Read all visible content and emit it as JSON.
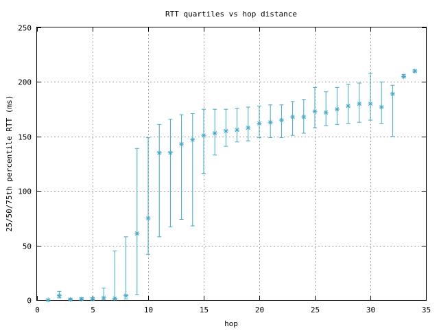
{
  "colors": {
    "series": "#3fa9cf",
    "grid": "#a0a0a0",
    "axis": "#000000",
    "background": "#ffffff"
  },
  "chart_data": {
    "type": "scatter",
    "title": "RTT quartiles vs hop distance",
    "xlabel": "hop",
    "ylabel": "25/50/75th percentile RTT (ms)",
    "xlim": [
      0,
      35
    ],
    "ylim": [
      0,
      250
    ],
    "xticks": [
      0,
      5,
      10,
      15,
      20,
      25,
      30,
      35
    ],
    "yticks": [
      0,
      50,
      100,
      150,
      200,
      250
    ],
    "grid": true,
    "legend": "none",
    "marker": "asterisk",
    "series": [
      {
        "x": [
          1,
          2,
          3,
          4,
          5,
          6,
          7,
          8,
          9,
          10,
          11,
          12,
          13,
          14,
          15,
          16,
          17,
          18,
          19,
          20,
          21,
          22,
          23,
          24,
          25,
          26,
          27,
          28,
          29,
          30,
          31,
          32,
          33,
          34
        ],
        "median": [
          0,
          4,
          0.5,
          1,
          1,
          2,
          1.5,
          4,
          61,
          75,
          135,
          135,
          143,
          147,
          151,
          153,
          155,
          156,
          158,
          162,
          163,
          165,
          168,
          168,
          173,
          172,
          175,
          178,
          180,
          180,
          177,
          189,
          205,
          210
        ],
        "q1": [
          0,
          2,
          0,
          0.5,
          0.5,
          0.5,
          0.5,
          1,
          5,
          42,
          58,
          67,
          74,
          68,
          116,
          133,
          141,
          145,
          146,
          149,
          149,
          149,
          151,
          153,
          158,
          160,
          161,
          162,
          163,
          165,
          162,
          150,
          204,
          209
        ],
        "q3": [
          0,
          8,
          1.5,
          2,
          2,
          11,
          45,
          58,
          139,
          149,
          161,
          166,
          170,
          171,
          175,
          175,
          175,
          176,
          177,
          178,
          179,
          179,
          182,
          184,
          195,
          191,
          195,
          198,
          199,
          208,
          200,
          197,
          207,
          211
        ]
      }
    ]
  }
}
